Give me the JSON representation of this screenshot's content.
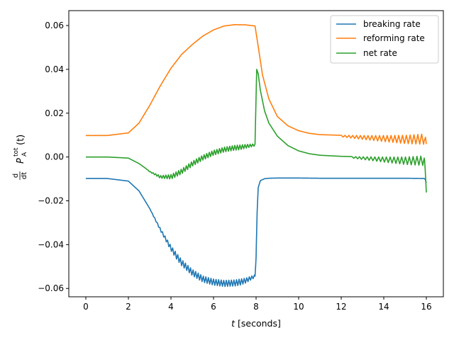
{
  "chart_data": {
    "type": "line",
    "xlabel_var": "t",
    "xlabel_rest": " [seconds]",
    "ylabel": {
      "d": "d",
      "dt": "dt",
      "P": "P",
      "sup": "tot",
      "sub": "A",
      "arg": "(t)"
    },
    "xlim": [
      -0.8,
      16.8
    ],
    "ylim": [
      -0.0638,
      0.0668
    ],
    "xticks": [
      0,
      2,
      4,
      6,
      8,
      10,
      12,
      14,
      16
    ],
    "xtick_labels": [
      "0",
      "2",
      "4",
      "6",
      "8",
      "10",
      "12",
      "14",
      "16"
    ],
    "yticks": [
      -0.06,
      -0.04,
      -0.02,
      0.0,
      0.02,
      0.04,
      0.06
    ],
    "ytick_labels": [
      "−0.06",
      "−0.04",
      "−0.02",
      "0.00",
      "0.02",
      "0.04",
      "0.06"
    ],
    "grid": false,
    "legend_position": "upper right",
    "series": [
      {
        "name": "breaking rate",
        "color": "#1f77b4",
        "x": [
          0,
          1,
          2,
          2.5,
          3,
          3.5,
          4,
          4.5,
          5,
          5.5,
          6,
          6.5,
          7,
          7.5,
          7.95,
          8.0,
          8.05,
          8.1,
          8.2,
          8.4,
          8.6,
          9,
          10,
          11,
          12,
          13,
          14,
          15,
          15.9,
          15.95,
          16.0
        ],
        "y": [
          -0.0098,
          -0.0098,
          -0.011,
          -0.0155,
          -0.0235,
          -0.0325,
          -0.0405,
          -0.0468,
          -0.0513,
          -0.0543,
          -0.0557,
          -0.0563,
          -0.0561,
          -0.0553,
          -0.0538,
          -0.045,
          -0.025,
          -0.014,
          -0.0108,
          -0.0099,
          -0.0097,
          -0.0096,
          -0.0096,
          -0.0097,
          -0.0097,
          -0.0097,
          -0.0097,
          -0.0097,
          -0.0098,
          -0.0103,
          -0.0118
        ],
        "osc": {
          "from": 3.0,
          "to": 8.0,
          "amp": 0.0028,
          "period": 0.12
        }
      },
      {
        "name": "reforming rate",
        "color": "#ff7f0e",
        "x": [
          0,
          1,
          2,
          2.5,
          3,
          3.5,
          4,
          4.5,
          5,
          5.5,
          6,
          6.5,
          7,
          7.5,
          7.95,
          8.1,
          8.3,
          8.6,
          9,
          9.5,
          10,
          10.5,
          11,
          12,
          13,
          14,
          15,
          15.9,
          16.0
        ],
        "y": [
          0.0098,
          0.0098,
          0.011,
          0.0155,
          0.0235,
          0.0325,
          0.0405,
          0.0468,
          0.0513,
          0.0552,
          0.058,
          0.0598,
          0.0604,
          0.0603,
          0.0598,
          0.0505,
          0.0375,
          0.0265,
          0.0185,
          0.0142,
          0.012,
          0.0108,
          0.0102,
          0.0099,
          0.0098,
          0.0098,
          0.0099,
          0.0105,
          0.008
        ],
        "osc": {
          "from": 12.0,
          "to": 16.0,
          "amp": 0.0048,
          "period": 0.18,
          "grow": true
        }
      },
      {
        "name": "net rate",
        "color": "#2ca02c",
        "x": [
          0,
          1,
          2,
          2.5,
          3,
          3.5,
          4,
          4.5,
          5,
          5.5,
          6,
          6.5,
          7,
          7.5,
          7.95,
          8.0,
          8.03,
          8.1,
          8.2,
          8.4,
          8.6,
          9,
          9.5,
          10,
          10.5,
          11,
          12,
          13,
          14,
          15,
          15.9,
          15.95,
          16.0
        ],
        "y": [
          0.0,
          0.0,
          -0.0005,
          -0.003,
          -0.0065,
          -0.0085,
          -0.008,
          -0.0055,
          -0.002,
          0.0008,
          0.003,
          0.0045,
          0.0053,
          0.0057,
          0.006,
          0.028,
          0.04,
          0.038,
          0.0305,
          0.021,
          0.0155,
          0.0095,
          0.0052,
          0.0028,
          0.0015,
          0.0008,
          0.0003,
          0.0001,
          0.0,
          0.0,
          0.0005,
          -0.005,
          -0.0122
        ],
        "osc": {
          "from": 2.8,
          "to": 8.0,
          "amp": 0.0022,
          "period": 0.12,
          "second": {
            "from": 12.5,
            "to": 16.0,
            "amp": 0.0045,
            "period": 0.18,
            "grow": true
          }
        }
      }
    ]
  }
}
